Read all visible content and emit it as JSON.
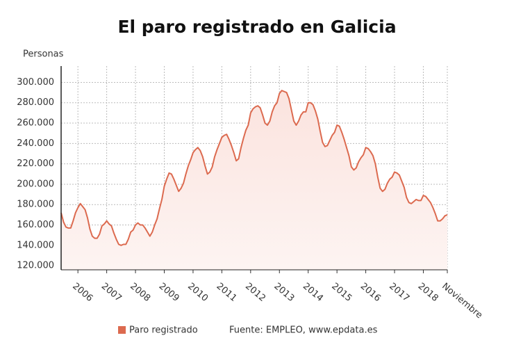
{
  "chart_data": {
    "type": "line",
    "title": "El paro registrado en Galicia",
    "y_label": "Personas",
    "source": "Fuente: EMPLEO, www.epdata.es",
    "categories": [
      null,
      null,
      null,
      null,
      null,
      null,
      null,
      "2006",
      null,
      null,
      null,
      null,
      null,
      null,
      null,
      null,
      null,
      null,
      null,
      "2007",
      null,
      null,
      null,
      null,
      null,
      null,
      null,
      null,
      null,
      null,
      null,
      "2008",
      null,
      null,
      null,
      null,
      null,
      null,
      null,
      null,
      null,
      null,
      null,
      "2009",
      null,
      null,
      null,
      null,
      null,
      null,
      null,
      null,
      null,
      null,
      null,
      "2010",
      null,
      null,
      null,
      null,
      null,
      null,
      null,
      null,
      null,
      null,
      null,
      "2011",
      null,
      null,
      null,
      null,
      null,
      null,
      null,
      null,
      null,
      null,
      null,
      "2012",
      null,
      null,
      null,
      null,
      null,
      null,
      null,
      null,
      null,
      null,
      null,
      "2013",
      null,
      null,
      null,
      null,
      null,
      null,
      null,
      null,
      null,
      null,
      null,
      "2014",
      null,
      null,
      null,
      null,
      null,
      null,
      null,
      null,
      null,
      null,
      null,
      "2015",
      null,
      null,
      null,
      null,
      null,
      null,
      null,
      null,
      null,
      null,
      null,
      "2016",
      null,
      null,
      null,
      null,
      null,
      null,
      null,
      null,
      null,
      null,
      null,
      "2017",
      null,
      null,
      null,
      null,
      null,
      null,
      null,
      null,
      null,
      null,
      null,
      "2018",
      null,
      null,
      null,
      null,
      null,
      null,
      null,
      null,
      null,
      "Noviembre"
    ],
    "series": [
      {
        "name": "Paro registrado",
        "color": "#dc6a4f",
        "values": [
          172000,
          163000,
          158000,
          157000,
          157000,
          164000,
          172000,
          177000,
          181000,
          178000,
          175000,
          167000,
          156000,
          149000,
          147000,
          147000,
          151000,
          159000,
          161000,
          164000,
          161000,
          159000,
          152000,
          146000,
          141000,
          140000,
          141000,
          141000,
          146000,
          153000,
          155000,
          160000,
          162000,
          160000,
          160000,
          157000,
          153000,
          149000,
          153000,
          160000,
          166000,
          176000,
          185000,
          198000,
          205000,
          211000,
          210000,
          205000,
          199000,
          193000,
          196000,
          201000,
          210000,
          218000,
          224000,
          231000,
          234000,
          236000,
          233000,
          227000,
          218000,
          210000,
          212000,
          217000,
          227000,
          234000,
          240000,
          246000,
          248000,
          249000,
          244000,
          238000,
          231000,
          223000,
          225000,
          236000,
          245000,
          253000,
          258000,
          270000,
          274000,
          276000,
          277000,
          275000,
          268000,
          260000,
          258000,
          262000,
          271000,
          277000,
          280000,
          289000,
          292000,
          291000,
          290000,
          284000,
          273000,
          262000,
          258000,
          262000,
          268000,
          271000,
          271000,
          280000,
          280000,
          278000,
          272000,
          264000,
          252000,
          241000,
          237000,
          238000,
          243000,
          248000,
          251000,
          258000,
          257000,
          251000,
          244000,
          236000,
          228000,
          217000,
          214000,
          216000,
          222000,
          226000,
          229000,
          236000,
          235000,
          232000,
          228000,
          220000,
          207000,
          196000,
          193000,
          195000,
          201000,
          205000,
          207000,
          212000,
          211000,
          209000,
          203000,
          197000,
          187000,
          182000,
          181000,
          183000,
          185000,
          184000,
          184000,
          189000,
          188000,
          185000,
          182000,
          177000,
          171000,
          164000,
          164000,
          166000,
          169000,
          170000
        ]
      }
    ],
    "ylim": [
      116000,
      316000
    ],
    "yticks": [
      {
        "value": 120000,
        "label": "120.000"
      },
      {
        "value": 140000,
        "label": "140.000"
      },
      {
        "value": 160000,
        "label": "160.000"
      },
      {
        "value": 180000,
        "label": "180.000"
      },
      {
        "value": 200000,
        "label": "200.000"
      },
      {
        "value": 220000,
        "label": "220.000"
      },
      {
        "value": 240000,
        "label": "240.000"
      },
      {
        "value": 260000,
        "label": "260.000"
      },
      {
        "value": 280000,
        "label": "280.000"
      },
      {
        "value": 300000,
        "label": "300.000"
      }
    ],
    "grid": true,
    "legend": "bottom"
  }
}
